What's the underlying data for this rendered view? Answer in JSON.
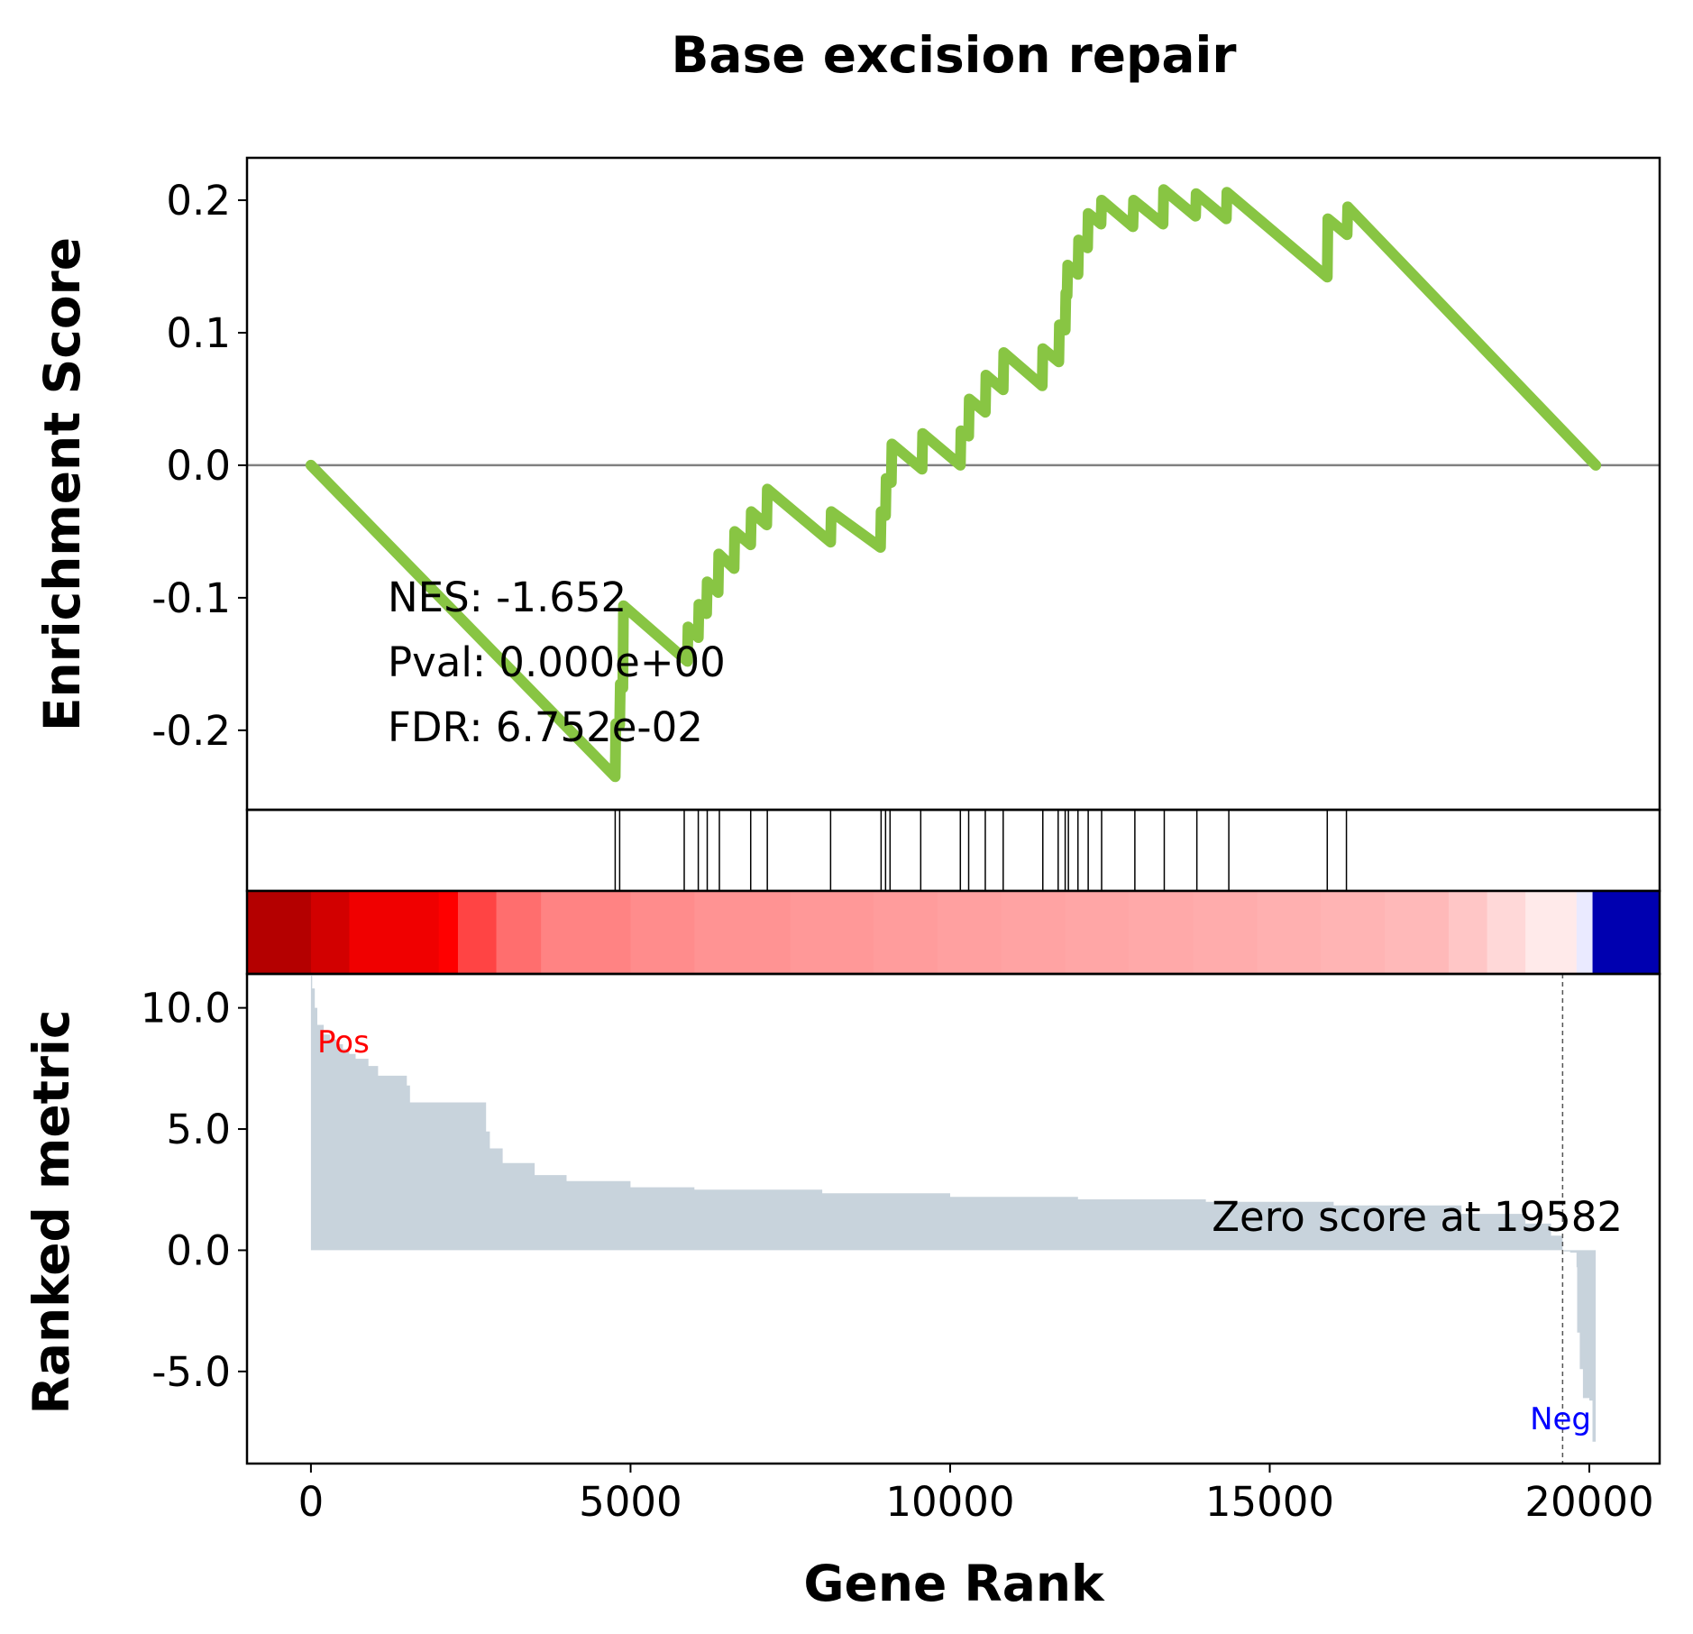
{
  "chart_data": {
    "type": "line",
    "title": "Base excision repair",
    "xlabel": "Gene Rank",
    "xlim": [
      -1000,
      21100
    ],
    "x_ticks": [
      0,
      5000,
      10000,
      15000,
      20000
    ],
    "colors": {
      "es_line": "#88c543",
      "metric_fill": "#c8d3dc",
      "hits": "#000000",
      "zero_line": "#808080"
    },
    "enrichment": {
      "ylabel": "Enrichment Score",
      "ylim": [
        -0.26,
        0.232
      ],
      "y_ticks": [
        {
          "value": 0.2,
          "label": "0.2"
        },
        {
          "value": 0.1,
          "label": "0.1"
        },
        {
          "value": 0.0,
          "label": "0.0"
        },
        {
          "value": -0.1,
          "label": "-0.1"
        },
        {
          "value": -0.2,
          "label": "-0.2"
        }
      ],
      "stats": {
        "nes": "NES: -1.652",
        "pval": "Pval: 0.000e+00",
        "fdr": "FDR: 6.752e-02"
      },
      "points": [
        [
          0,
          0.0
        ],
        [
          4760,
          -0.235
        ],
        [
          4770,
          -0.195
        ],
        [
          4830,
          -0.196
        ],
        [
          4840,
          -0.165
        ],
        [
          4880,
          -0.168
        ],
        [
          4890,
          -0.106
        ],
        [
          5890,
          -0.148
        ],
        [
          5900,
          -0.122
        ],
        [
          6060,
          -0.13
        ],
        [
          6070,
          -0.105
        ],
        [
          6190,
          -0.112
        ],
        [
          6200,
          -0.088
        ],
        [
          6370,
          -0.096
        ],
        [
          6380,
          -0.067
        ],
        [
          6620,
          -0.078
        ],
        [
          6630,
          -0.05
        ],
        [
          6880,
          -0.06
        ],
        [
          6890,
          -0.035
        ],
        [
          7130,
          -0.045
        ],
        [
          7140,
          -0.018
        ],
        [
          8130,
          -0.058
        ],
        [
          8140,
          -0.035
        ],
        [
          8910,
          -0.062
        ],
        [
          8920,
          -0.035
        ],
        [
          8990,
          -0.038
        ],
        [
          9000,
          -0.01
        ],
        [
          9080,
          -0.013
        ],
        [
          9090,
          0.016
        ],
        [
          9560,
          -0.003
        ],
        [
          9570,
          0.024
        ],
        [
          10160,
          0.0
        ],
        [
          10170,
          0.026
        ],
        [
          10290,
          0.022
        ],
        [
          10300,
          0.05
        ],
        [
          10550,
          0.04
        ],
        [
          10560,
          0.068
        ],
        [
          10830,
          0.057
        ],
        [
          10840,
          0.085
        ],
        [
          11440,
          0.06
        ],
        [
          11450,
          0.088
        ],
        [
          11700,
          0.078
        ],
        [
          11710,
          0.106
        ],
        [
          11800,
          0.102
        ],
        [
          11810,
          0.13
        ],
        [
          11830,
          0.128
        ],
        [
          11840,
          0.151
        ],
        [
          12000,
          0.144
        ],
        [
          12010,
          0.17
        ],
        [
          12150,
          0.164
        ],
        [
          12160,
          0.19
        ],
        [
          12360,
          0.182
        ],
        [
          12370,
          0.2
        ],
        [
          12860,
          0.18
        ],
        [
          12870,
          0.2
        ],
        [
          13330,
          0.182
        ],
        [
          13340,
          0.208
        ],
        [
          13840,
          0.188
        ],
        [
          13850,
          0.205
        ],
        [
          14320,
          0.186
        ],
        [
          14330,
          0.206
        ],
        [
          15900,
          0.142
        ],
        [
          15910,
          0.186
        ],
        [
          16210,
          0.174
        ],
        [
          16220,
          0.195
        ],
        [
          20100,
          0.0
        ]
      ],
      "hits": [
        4760,
        4830,
        5840,
        6060,
        6200,
        6390,
        6880,
        7140,
        8130,
        8920,
        8990,
        9060,
        9540,
        10160,
        10290,
        10550,
        10830,
        11450,
        11690,
        11800,
        11850,
        12000,
        12160,
        12370,
        12890,
        13350,
        13860,
        14360,
        15900,
        16200
      ]
    },
    "ranked_metric": {
      "ylabel": "Ranked metric",
      "ylim": [
        -8.8,
        11.4
      ],
      "y_ticks": [
        {
          "value": 10,
          "label": "10.0"
        },
        {
          "value": 5,
          "label": "5.0"
        },
        {
          "value": 0,
          "label": "0.0"
        },
        {
          "value": -5,
          "label": "-5.0"
        }
      ],
      "pos_label": "Pos",
      "neg_label": "Neg",
      "zero_score_label": "Zero score at 19582",
      "zero_score_rank": 19582,
      "values": [
        [
          0,
          11.4
        ],
        [
          20,
          10.8
        ],
        [
          60,
          10.0
        ],
        [
          100,
          9.3
        ],
        [
          200,
          8.9
        ],
        [
          300,
          8.7
        ],
        [
          400,
          8.5
        ],
        [
          500,
          8.3
        ],
        [
          600,
          8.1
        ],
        [
          700,
          7.9
        ],
        [
          900,
          7.6
        ],
        [
          1050,
          7.2
        ],
        [
          1500,
          6.8
        ],
        [
          1550,
          6.1
        ],
        [
          2700,
          6.1
        ],
        [
          2740,
          4.9
        ],
        [
          2800,
          4.2
        ],
        [
          3000,
          3.6
        ],
        [
          3500,
          3.1
        ],
        [
          4000,
          2.85
        ],
        [
          5000,
          2.6
        ],
        [
          6000,
          2.5
        ],
        [
          8000,
          2.35
        ],
        [
          10000,
          2.2
        ],
        [
          12000,
          2.1
        ],
        [
          14000,
          2.0
        ],
        [
          16000,
          1.85
        ],
        [
          18000,
          1.5
        ],
        [
          19000,
          1.1
        ],
        [
          19400,
          0.6
        ],
        [
          19582,
          0.0
        ],
        [
          19600,
          -0.05
        ],
        [
          19700,
          -0.1
        ],
        [
          19800,
          -0.7
        ],
        [
          19810,
          -3.4
        ],
        [
          19850,
          -4.9
        ],
        [
          19900,
          -6.1
        ],
        [
          20000,
          -6.2
        ],
        [
          20050,
          -7.9
        ],
        [
          20100,
          -7.9
        ]
      ]
    },
    "heatmap": {
      "colors": [
        "#b40000",
        "#d20000",
        "#f00000",
        "#ff0000",
        "#ff4444",
        "#ff6e6e",
        "#ff8383",
        "#ff8c8c",
        "#ff9393",
        "#ff9898",
        "#ff9c9c",
        "#ffa0a0",
        "#ffa3a3",
        "#ffa6a6",
        "#ffa9a9",
        "#ffacac",
        "#ffb0b0",
        "#ffb4b4",
        "#ffb9b9",
        "#ffc6c6",
        "#ffd8d8",
        "#ffeaea",
        "#eaeaff",
        "#0000b0"
      ],
      "breaks": [
        -1000,
        0,
        600,
        2000,
        2300,
        2900,
        3600,
        5000,
        6000,
        7500,
        8800,
        9800,
        10800,
        11800,
        12800,
        13800,
        14800,
        15800,
        16800,
        17800,
        18400,
        19000,
        19800,
        20050,
        21100
      ]
    }
  }
}
